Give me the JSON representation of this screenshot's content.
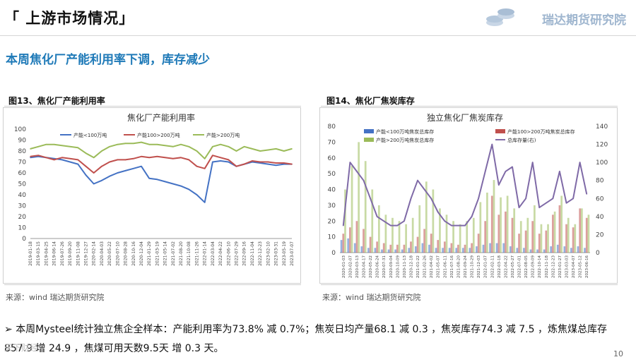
{
  "header": {
    "title": "「 上游市场情况」",
    "logo_text": "瑞达期货研究院"
  },
  "subtitle": "本周焦化厂产能利用率下调，库存减少",
  "charts": [
    {
      "caption": "图13、焦化厂产能利用率",
      "source": "来源：wind   瑞达期货研究院"
    },
    {
      "caption": "图14、焦化厂焦炭库存",
      "source": "来源：wind   瑞达期货研究院"
    }
  ],
  "chart_data": [
    {
      "type": "line",
      "title": "焦化厂产能利用率",
      "ylim": [
        0,
        100
      ],
      "yticks": [
        "0",
        "10",
        "20",
        "30",
        "40",
        "50",
        "60",
        "70",
        "80",
        "90",
        "100"
      ],
      "grid": false,
      "legend_position": "top",
      "x": [
        "2019-01-18",
        "2019-03-15",
        "2019-04-25",
        "2019-06-14",
        "2019-07-26",
        "2019-09-20",
        "2019-11-08",
        "2019-12-27",
        "2020-02-14",
        "2020-04-03",
        "2020-05-22",
        "2020-07-10",
        "2020-08-28",
        "2020-10-16",
        "2020-12-04",
        "2021-01-29",
        "2021-03-19",
        "2021-05-14",
        "2021-07-02",
        "2021-08-20",
        "2021-10-08",
        "2021-11-26",
        "2022-01-14",
        "2022-03-04",
        "2022-04-22",
        "2022-06-10",
        "2022-07-29",
        "2022-09-16",
        "2022-11-04",
        "2022-12-23",
        "2023-02-10",
        "2023-03-31",
        "2023-05-19",
        "2023-07-07"
      ],
      "series": [
        {
          "name": "产能<100万吨",
          "color": "#4472c4",
          "values": [
            74,
            75,
            74,
            73,
            72,
            70,
            68,
            58,
            50,
            53,
            57,
            60,
            62,
            64,
            66,
            55,
            54,
            52,
            50,
            48,
            45,
            40,
            33,
            70,
            71,
            70,
            66,
            68,
            70,
            69,
            68,
            67,
            68,
            68
          ]
        },
        {
          "name": "产能100>200万吨",
          "color": "#c0504d",
          "values": [
            75,
            76,
            74,
            72,
            74,
            73,
            72,
            66,
            60,
            66,
            70,
            72,
            72,
            73,
            75,
            74,
            75,
            74,
            73,
            74,
            72,
            66,
            64,
            76,
            74,
            72,
            66,
            68,
            71,
            70,
            70,
            69,
            69,
            68
          ]
        },
        {
          "name": "产能>200万吨",
          "color": "#9bbb59",
          "values": [
            82,
            84,
            86,
            86,
            85,
            84,
            83,
            78,
            74,
            80,
            84,
            86,
            87,
            87,
            88,
            86,
            86,
            85,
            84,
            86,
            84,
            80,
            73,
            84,
            86,
            84,
            80,
            84,
            82,
            80,
            81,
            82,
            80,
            82
          ]
        }
      ]
    },
    {
      "type": "bar",
      "title": "独立焦化厂焦炭库存",
      "ylim_left": [
        0,
        80
      ],
      "ylim_right": [
        0,
        140
      ],
      "yticks_left": [
        "0",
        "10",
        "20",
        "30",
        "40",
        "50",
        "60",
        "70",
        "80"
      ],
      "yticks_right": [
        "0",
        "20",
        "40",
        "60",
        "80",
        "100",
        "120",
        "140"
      ],
      "grid": false,
      "legend_position": "top",
      "x": [
        "2020-01-03",
        "2020-02-07",
        "2020-03-13",
        "2020-04-17",
        "2020-05-22",
        "2020-06-24",
        "2020-07-31",
        "2020-09-04",
        "2020-10-09",
        "2020-11-13",
        "2020-12-18",
        "2021-01-22",
        "2021-02-26",
        "2021-04-02",
        "2021-05-07",
        "2021-06-11",
        "2021-07-16",
        "2021-08-20",
        "2021-09-24",
        "2021-10-29",
        "2021-12-03",
        "2022-01-07",
        "2022-02-11",
        "2022-03-18",
        "2022-04-22",
        "2022-05-27",
        "2022-07-01",
        "2022-08-05",
        "2022-09-09",
        "2022-10-14",
        "2022-11-18",
        "2022-12-23",
        "2023-01-27",
        "2023-03-03",
        "2023-04-07",
        "2023-05-12",
        "2023-06-16"
      ],
      "series": [
        {
          "name": "产能<100万吨焦炭总库存",
          "color": "#4472c4",
          "axis": "left",
          "values": [
            8,
            9,
            6,
            4,
            3,
            3,
            2,
            2,
            2,
            2,
            3,
            4,
            6,
            5,
            3,
            3,
            3,
            3,
            3,
            3,
            4,
            5,
            6,
            6,
            6,
            4,
            3,
            3,
            2,
            2,
            2,
            4,
            5,
            4,
            3,
            4,
            3
          ]
        },
        {
          "name": "产能100>200万吨焦炭总库存",
          "color": "#c0504d",
          "axis": "left",
          "values": [
            12,
            16,
            20,
            15,
            10,
            7,
            6,
            5,
            5,
            5,
            7,
            10,
            15,
            12,
            8,
            7,
            6,
            5,
            5,
            6,
            12,
            20,
            36,
            24,
            26,
            22,
            12,
            14,
            20,
            12,
            14,
            24,
            30,
            18,
            16,
            28,
            22
          ]
        },
        {
          "name": "产能>200万吨焦炭总库存",
          "color": "#9bbb59",
          "axis": "left",
          "values": [
            40,
            55,
            70,
            58,
            40,
            30,
            24,
            22,
            20,
            18,
            22,
            30,
            45,
            40,
            28,
            24,
            20,
            18,
            20,
            22,
            32,
            38,
            46,
            35,
            36,
            28,
            20,
            22,
            30,
            18,
            18,
            26,
            36,
            22,
            18,
            28,
            24
          ]
        },
        {
          "name": "总库存量(右)",
          "color": "#7f6aa7",
          "axis": "right",
          "values": [
            30,
            100,
            90,
            80,
            60,
            40,
            35,
            30,
            30,
            35,
            60,
            80,
            70,
            60,
            45,
            35,
            30,
            30,
            30,
            40,
            60,
            90,
            120,
            75,
            90,
            95,
            50,
            60,
            100,
            50,
            55,
            60,
            90,
            55,
            60,
            100,
            65
          ]
        }
      ]
    }
  ],
  "bullet": {
    "marker": "➢",
    "text": "本周Mysteel统计独立焦企全样本：产能利用率为73.8% 减 0.7%；焦炭日均产量68.1 减 0.3 ，焦炭库存74.3 减 7.5 ，炼焦煤总库存857.9 增 24.9 ，焦煤可用天数9.5天 增 0.3 天。"
  },
  "page_number": "10",
  "watermark": "天下财经"
}
